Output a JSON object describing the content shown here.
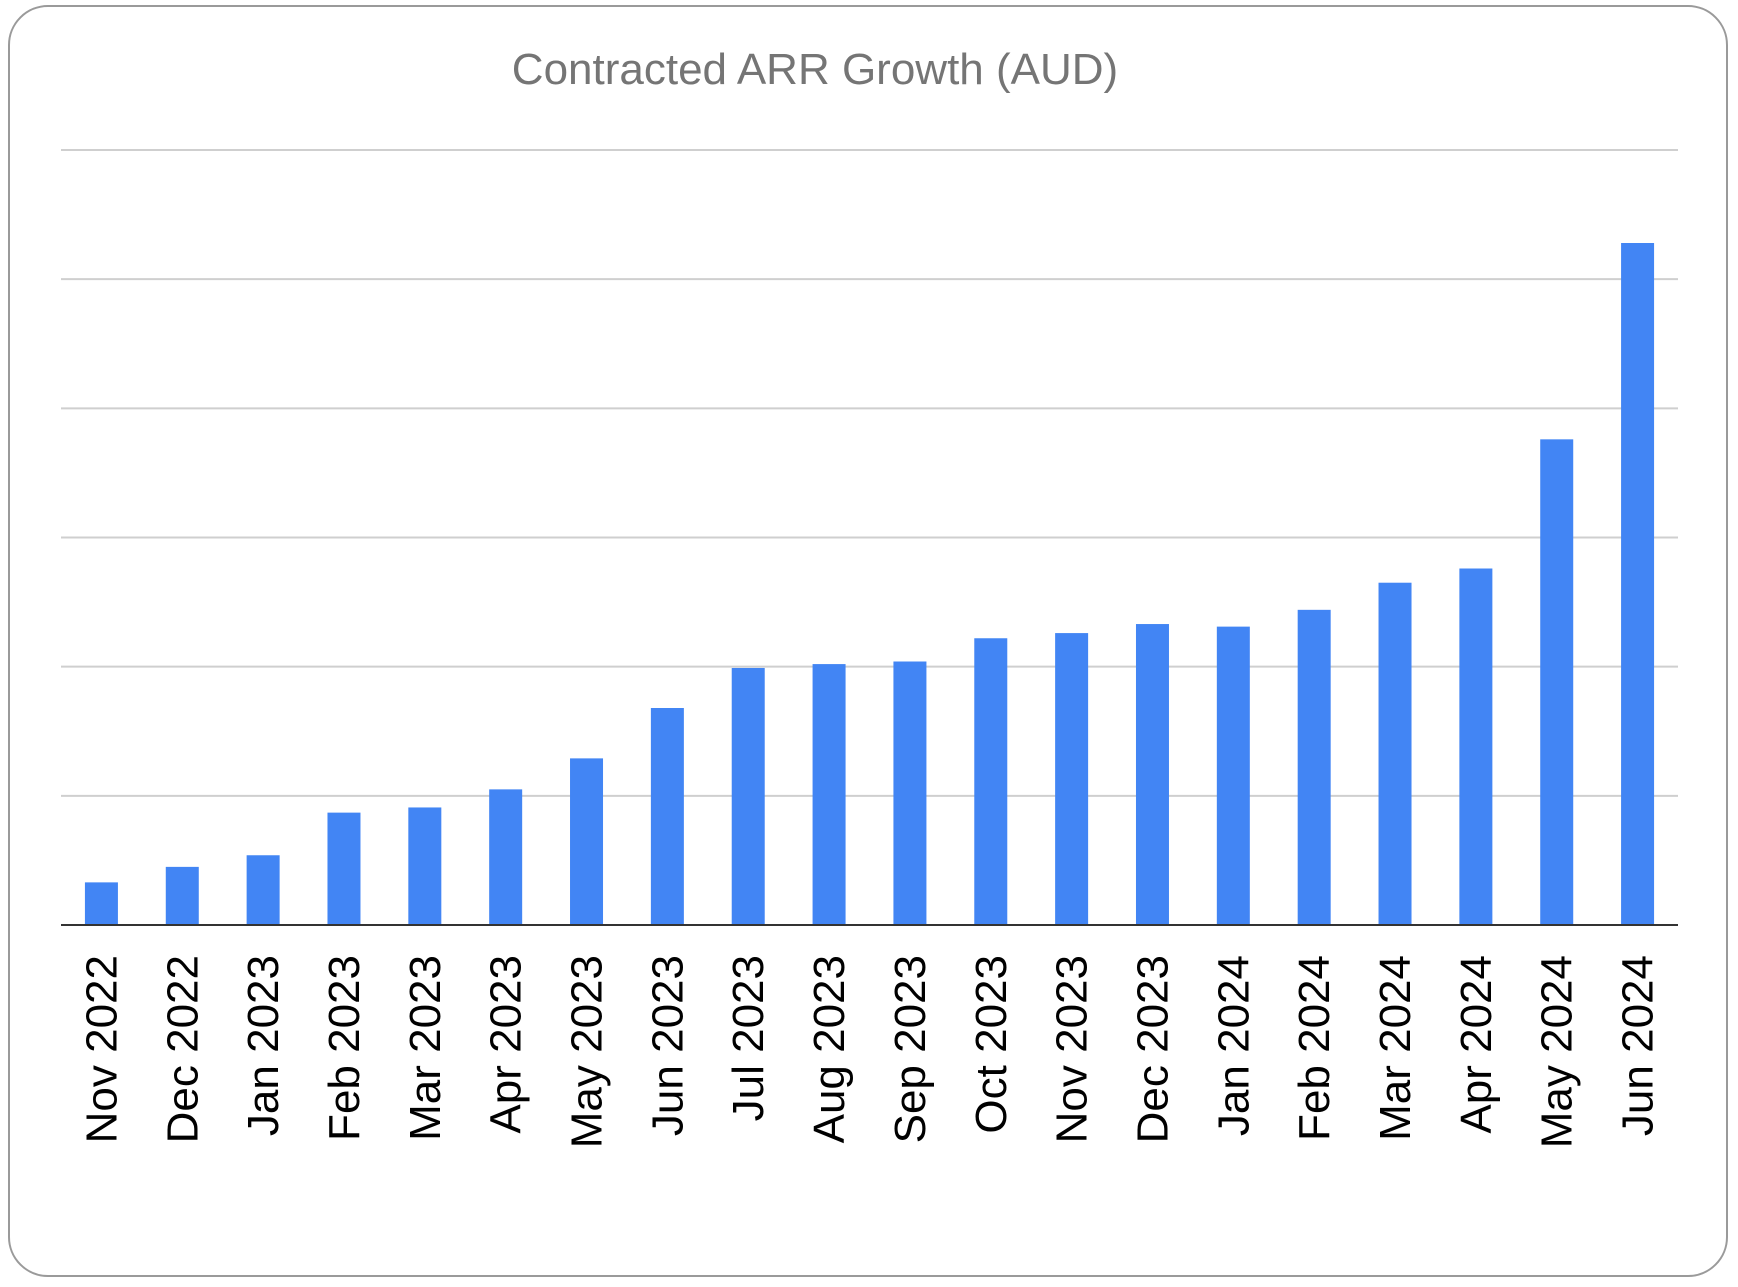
{
  "chart_data": {
    "type": "bar",
    "title": "Contracted ARR Growth (AUD)",
    "xlabel": "",
    "ylabel": "",
    "y_units_note": "no y-axis tick labels shown; values in gridline units",
    "ylim": [
      0,
      6
    ],
    "grid": true,
    "legend": "none",
    "bar_color": "#4285f4",
    "categories": [
      "Nov 2022",
      "Dec 2022",
      "Jan 2023",
      "Feb 2023",
      "Mar 2023",
      "Apr 2023",
      "May 2023",
      "Jun 2023",
      "Jul 2023",
      "Aug 2023",
      "Sep 2023",
      "Oct 2023",
      "Nov 2023",
      "Dec 2023",
      "Jan 2024",
      "Feb 2024",
      "Mar 2024",
      "Apr 2024",
      "May 2024",
      "Jun 2024"
    ],
    "values": [
      0.33,
      0.45,
      0.54,
      0.87,
      0.91,
      1.05,
      1.29,
      1.68,
      1.99,
      2.02,
      2.04,
      2.22,
      2.26,
      2.33,
      2.31,
      2.44,
      2.65,
      2.76,
      3.76,
      5.28
    ]
  }
}
